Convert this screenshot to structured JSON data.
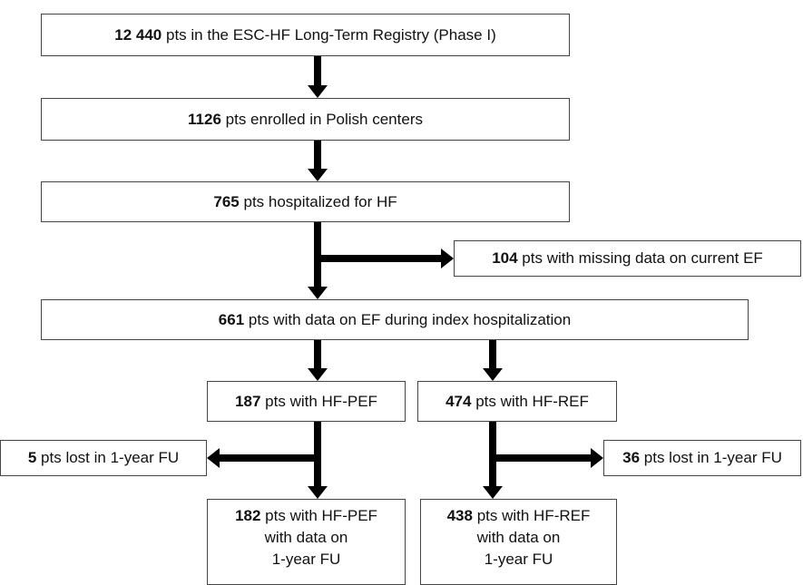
{
  "nodes": [
    {
      "count": "12 440",
      "label": "pts in the ESC-HF Long-Term Registry (Phase I)"
    },
    {
      "count": "1126",
      "label": "pts enrolled in Polish centers"
    },
    {
      "count": "765",
      "label": "pts hospitalized for HF"
    },
    {
      "count": "104",
      "label": "pts with missing data on current EF"
    },
    {
      "count": "661",
      "label": "pts with data on EF during index hospitalization"
    },
    {
      "count": "187",
      "label": "pts with HF-PEF"
    },
    {
      "count": "474",
      "label": "pts with HF-REF"
    },
    {
      "count": "5",
      "label": "pts lost in 1-year FU"
    },
    {
      "count": "36",
      "label": "pts lost in 1-year FU"
    },
    {
      "count": "182",
      "label": [
        "pts with HF-PEF",
        "with data on",
        "1-year FU"
      ]
    },
    {
      "count": "438",
      "label": [
        "pts with HF-REF",
        "with data on",
        "1-year FU"
      ]
    }
  ]
}
